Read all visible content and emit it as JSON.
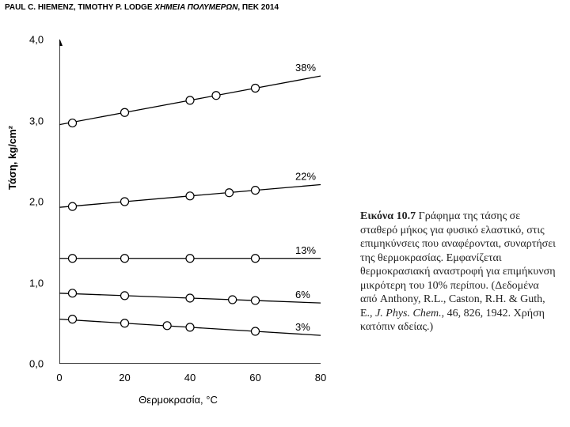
{
  "header": {
    "authors": "PAUL C. HIEMENZ, TIMOTHY P. LODGE ",
    "title_italic": "ΧΗΜΕΙΑ ΠΟΛΥΜΕΡΩΝ",
    "tail": ", ΠΕΚ 2014"
  },
  "chart": {
    "type": "line",
    "xlabel": "Θερμοκρασία, °C",
    "ylabel": "Τάση, kg/cm²",
    "xlim": [
      0,
      80
    ],
    "ylim": [
      0,
      4.0
    ],
    "xtick_step": 20,
    "xticks": [
      0,
      20,
      40,
      60,
      80
    ],
    "yticks": [
      0.0,
      1.0,
      2.0,
      3.0,
      4.0
    ],
    "ytick_labels": [
      "0,0",
      "1,0",
      "2,0",
      "3,0",
      "4,0"
    ],
    "background_color": "#ffffff",
    "axis_color": "#000000",
    "line_color": "#000000",
    "marker_size": 5,
    "line_width": 1.3,
    "series": [
      {
        "label": "38%",
        "x": [
          0,
          20,
          40,
          60,
          80
        ],
        "y": [
          2.95,
          3.1,
          3.25,
          3.4,
          3.55
        ],
        "marker_x": [
          4,
          20,
          40,
          48,
          60
        ],
        "marker_y": [
          2.97,
          3.1,
          3.25,
          3.31,
          3.4
        ]
      },
      {
        "label": "22%",
        "x": [
          0,
          20,
          40,
          60,
          80
        ],
        "y": [
          1.93,
          2.0,
          2.07,
          2.14,
          2.21
        ],
        "marker_x": [
          4,
          20,
          40,
          52,
          60
        ],
        "marker_y": [
          1.94,
          2.0,
          2.07,
          2.11,
          2.14
        ]
      },
      {
        "label": "13%",
        "x": [
          0,
          20,
          40,
          60,
          80
        ],
        "y": [
          1.3,
          1.3,
          1.3,
          1.3,
          1.3
        ],
        "marker_x": [
          4,
          20,
          40,
          60
        ],
        "marker_y": [
          1.3,
          1.3,
          1.3,
          1.3
        ]
      },
      {
        "label": "6%",
        "x": [
          0,
          20,
          40,
          60,
          80
        ],
        "y": [
          0.87,
          0.84,
          0.81,
          0.78,
          0.75
        ],
        "marker_x": [
          4,
          20,
          40,
          53,
          60
        ],
        "marker_y": [
          0.87,
          0.84,
          0.81,
          0.79,
          0.78
        ]
      },
      {
        "label": "3%",
        "x": [
          0,
          20,
          40,
          60,
          80
        ],
        "y": [
          0.55,
          0.5,
          0.45,
          0.4,
          0.35
        ],
        "marker_x": [
          4,
          20,
          33,
          40,
          60
        ],
        "marker_y": [
          0.55,
          0.5,
          0.47,
          0.45,
          0.4
        ]
      }
    ],
    "series_label_fontsize": 13
  },
  "caption": {
    "lead_bold": "Εικόνα 10.7",
    "body1": "   Γράφημα της τάσης σε σταθερό μήκος για φυσικό ελαστικό, στις επιμηκύνσεις που αναφέρονται, συναρτήσει της θερμοκρασίας. Εμφανίζεται θερμοκρασιακή αναστροφή για επιμήκυνση μικρότερη του 10% περίπου. (Δεδομένα από Anthony, R.L., Caston, R.H. & Guth, E., ",
    "journal_italic": "J. Phys. Chem.",
    "body2": ", 46, 826, 1942. Χρήση κατόπιν αδείας.)"
  }
}
